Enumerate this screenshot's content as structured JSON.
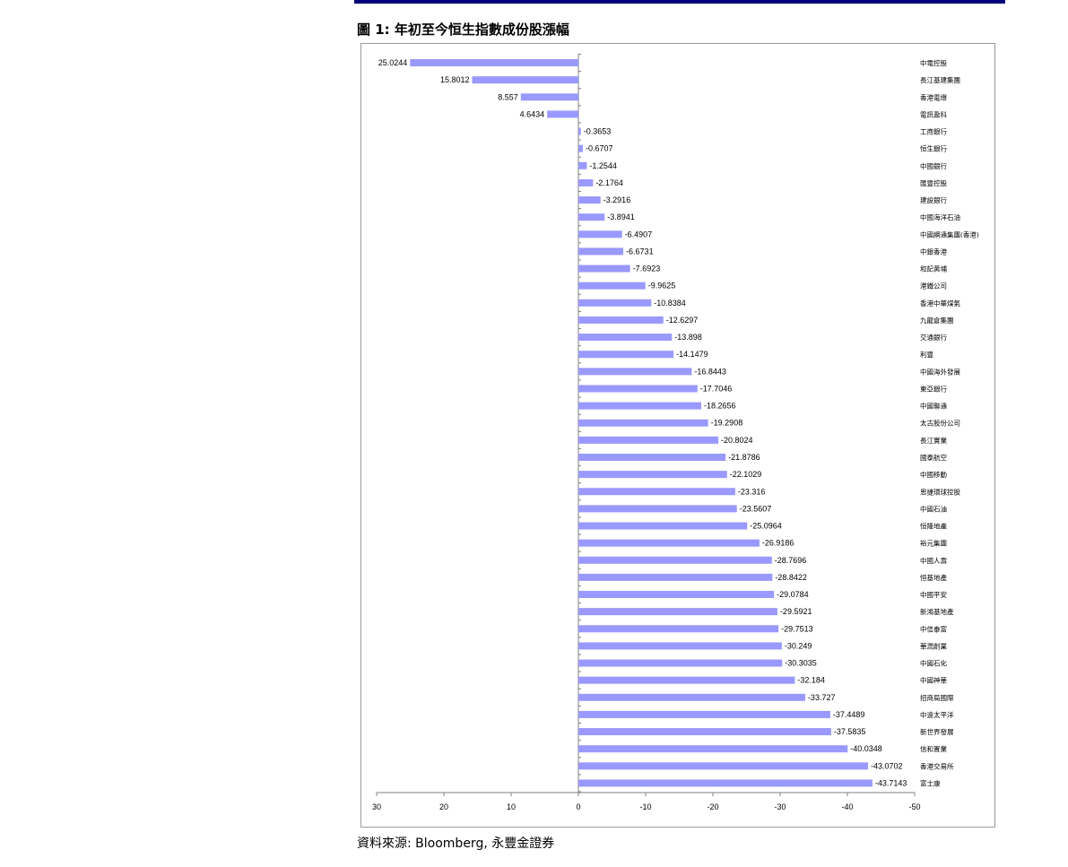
{
  "title": "圖 1: 年初至今恒生指數成份股漲幅",
  "source": "資料來源: Bloomberg, 永豐金證券",
  "colors": {
    "bar": "#9999ff",
    "topbar": "#00007a",
    "axis": "#808080"
  },
  "chart_data": {
    "type": "bar",
    "orientation": "horizontal",
    "xlim": [
      30,
      -50
    ],
    "x_axis_reversed": true,
    "x_ticks": [
      30,
      20,
      10,
      0,
      -10,
      -20,
      -30,
      -40,
      -50
    ],
    "categories": [
      "中電控股",
      "長江基建集團",
      "香港電燈",
      "電訊盈科",
      "工商銀行",
      "恒生銀行",
      "中國銀行",
      "匯豐控股",
      "建設銀行",
      "中國海洋石油",
      "中國網通集團(香港)",
      "中銀香港",
      "和記黃埔",
      "港鐵公司",
      "香港中華煤氣",
      "九龍倉集團",
      "交通銀行",
      "利豐",
      "中國海外發展",
      "東亞銀行",
      "中國聯通",
      "太古股份公司",
      "長江實業",
      "國泰航空",
      "中國移動",
      "思捷環球控股",
      "中國石油",
      "恒隆地產",
      "裕元集團",
      "中國人壽",
      "恒基地產",
      "中國平安",
      "新鴻基地產",
      "中信泰富",
      "華潤創業",
      "中國石化",
      "中國神華",
      "招商局國際",
      "中遠太平洋",
      "新世界發展",
      "信和置業",
      "香港交易所",
      "富士康"
    ],
    "values": [
      25.0244,
      15.8012,
      8.557,
      4.6434,
      -0.3653,
      -0.6707,
      -1.2544,
      -2.1764,
      -3.2916,
      -3.8941,
      -6.4907,
      -6.6731,
      -7.6923,
      -9.9625,
      -10.8384,
      -12.6297,
      -13.898,
      -14.1479,
      -16.8443,
      -17.7046,
      -18.2656,
      -19.2908,
      -20.8024,
      -21.8786,
      -22.1029,
      -23.316,
      -23.5607,
      -25.0964,
      -26.9186,
      -28.7696,
      -28.8422,
      -29.0784,
      -29.5921,
      -29.7513,
      -30.249,
      -30.3035,
      -32.184,
      -33.727,
      -37.4489,
      -37.5835,
      -40.0348,
      -43.0702,
      -43.7143
    ],
    "labels": [
      "25.0244",
      "15.8012",
      "8.557",
      "4.6434",
      "-0.3653",
      "-0.6707",
      "-1.2544",
      "-2.1764",
      "-3.2916",
      "-3.8941",
      "-6.4907",
      "-6.6731",
      "-7.6923",
      "-9.9625",
      "-10.8384",
      "-12.6297",
      "-13.898",
      "-14.1479",
      "-16.8443",
      "-17.7046",
      "-18.2656",
      "-19.2908",
      "-20.8024",
      "-21.8786",
      "-22.1029",
      "-23.316",
      "-23.5607",
      "-25.0964",
      "-26.9186",
      "-28.7696",
      "-28.8422",
      "-29.0784",
      "-29.5921",
      "-29.7513",
      "-30.249",
      "-30.3035",
      "-32.184",
      "-33.727",
      "-37.4489",
      "-37.5835",
      "-40.0348",
      "-43.0702",
      "-43.7143"
    ],
    "grid": false,
    "legend": "none"
  }
}
